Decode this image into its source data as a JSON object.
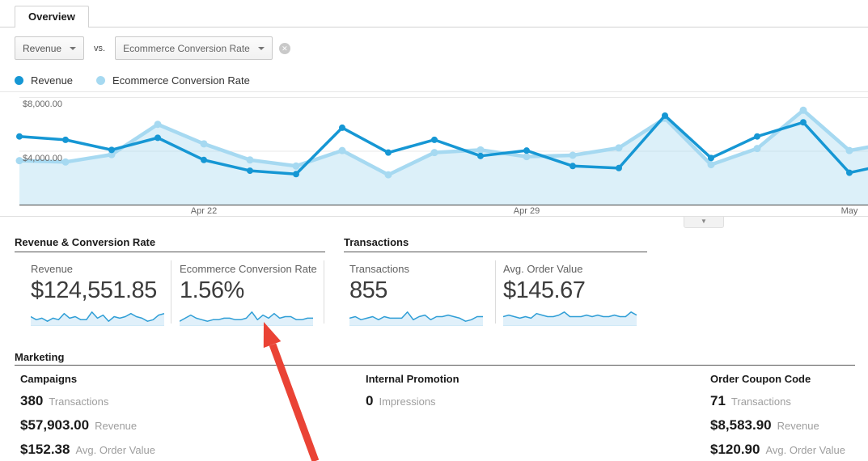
{
  "tab": {
    "label": "Overview"
  },
  "controls": {
    "metric_primary": "Revenue",
    "vs_label": "vs.",
    "metric_secondary": "Ecommerce Conversion Rate"
  },
  "icons": {
    "remove": "✕",
    "caret_down": "▼"
  },
  "legend": [
    {
      "label": "Revenue",
      "color": "#1697d4"
    },
    {
      "label": "Ecommerce Conversion Rate",
      "color": "#a6d9f1"
    }
  ],
  "chart_data": {
    "type": "line",
    "y_ticks": [
      "$8,000.00",
      "$4,000.00"
    ],
    "y_gridlines": [
      8000,
      4000
    ],
    "ylim": [
      0,
      8400
    ],
    "grid": "horizontal",
    "legend_position": "top-left",
    "x_ticks": [
      {
        "label": "Apr 22",
        "index": 4
      },
      {
        "label": "Apr 29",
        "index": 11
      },
      {
        "label": "May",
        "index": 18
      }
    ],
    "series": [
      {
        "name": "Revenue",
        "color": "#1697d4",
        "values": [
          5100,
          4850,
          4100,
          5000,
          3350,
          2550,
          2300,
          5750,
          3900,
          4850,
          3650,
          4050,
          2900,
          2750,
          6650,
          3500,
          5100,
          6150,
          2400
        ],
        "edge_value": 2700
      },
      {
        "name": "Ecommerce Conversion Rate",
        "color": "#a6d9f1",
        "area": true,
        "fill": "rgba(164,216,240,0.38)",
        "values": [
          3300,
          3200,
          3750,
          6000,
          4550,
          3350,
          2900,
          4050,
          2250,
          3900,
          4100,
          3600,
          3700,
          4250,
          6450,
          3000,
          4200,
          7050,
          4050
        ],
        "edge_value": 4300
      }
    ]
  },
  "summary": [
    {
      "title": "Revenue & Conversion Rate",
      "cards": [
        {
          "label": "Revenue",
          "value": "$124,551.85",
          "spark": [
            5,
            3,
            4,
            2,
            4,
            3,
            7,
            4,
            5,
            3,
            3,
            8,
            4,
            6,
            2,
            5,
            4,
            5,
            7,
            5,
            4,
            2,
            3,
            6,
            7
          ]
        },
        {
          "label": "Ecommerce Conversion Rate",
          "value": "1.56%",
          "spark": [
            2,
            4,
            6,
            4,
            3,
            2,
            3,
            3,
            4,
            4,
            3,
            3,
            4,
            8,
            3,
            6,
            4,
            7,
            4,
            5,
            5,
            3,
            3,
            4,
            4
          ]
        }
      ]
    },
    {
      "title": "Transactions",
      "cards": [
        {
          "label": "Transactions",
          "value": "855",
          "spark": [
            4,
            5,
            3,
            4,
            5,
            3,
            5,
            4,
            4,
            4,
            8,
            3,
            5,
            6,
            3,
            5,
            5,
            6,
            5,
            4,
            2,
            3,
            5,
            5
          ]
        },
        {
          "label": "Avg. Order Value",
          "value": "$145.67",
          "spark": [
            5,
            6,
            5,
            4,
            5,
            4,
            7,
            6,
            5,
            5,
            6,
            8,
            5,
            5,
            5,
            6,
            5,
            6,
            5,
            5,
            6,
            5,
            5,
            8,
            6
          ]
        }
      ]
    }
  ],
  "marketing": {
    "title": "Marketing",
    "columns": [
      {
        "title": "Campaigns",
        "stats": [
          {
            "value": "380",
            "label": "Transactions"
          },
          {
            "value": "$57,903.00",
            "label": "Revenue"
          },
          {
            "value": "$152.38",
            "label": "Avg. Order Value"
          }
        ]
      },
      {
        "title": "Internal Promotion",
        "stats": [
          {
            "value": "0",
            "label": "Impressions"
          }
        ]
      },
      {
        "title": "Order Coupon Code",
        "stats": [
          {
            "value": "71",
            "label": "Transactions"
          },
          {
            "value": "$8,583.90",
            "label": "Revenue"
          },
          {
            "value": "$120.90",
            "label": "Avg. Order Value"
          }
        ]
      }
    ]
  },
  "annotation": {
    "type": "arrow",
    "color": "#ea4335"
  },
  "spark_style": {
    "line": "#2f9ed6",
    "fill": "#e0f0fa",
    "baseline": "#cfe9f7"
  }
}
